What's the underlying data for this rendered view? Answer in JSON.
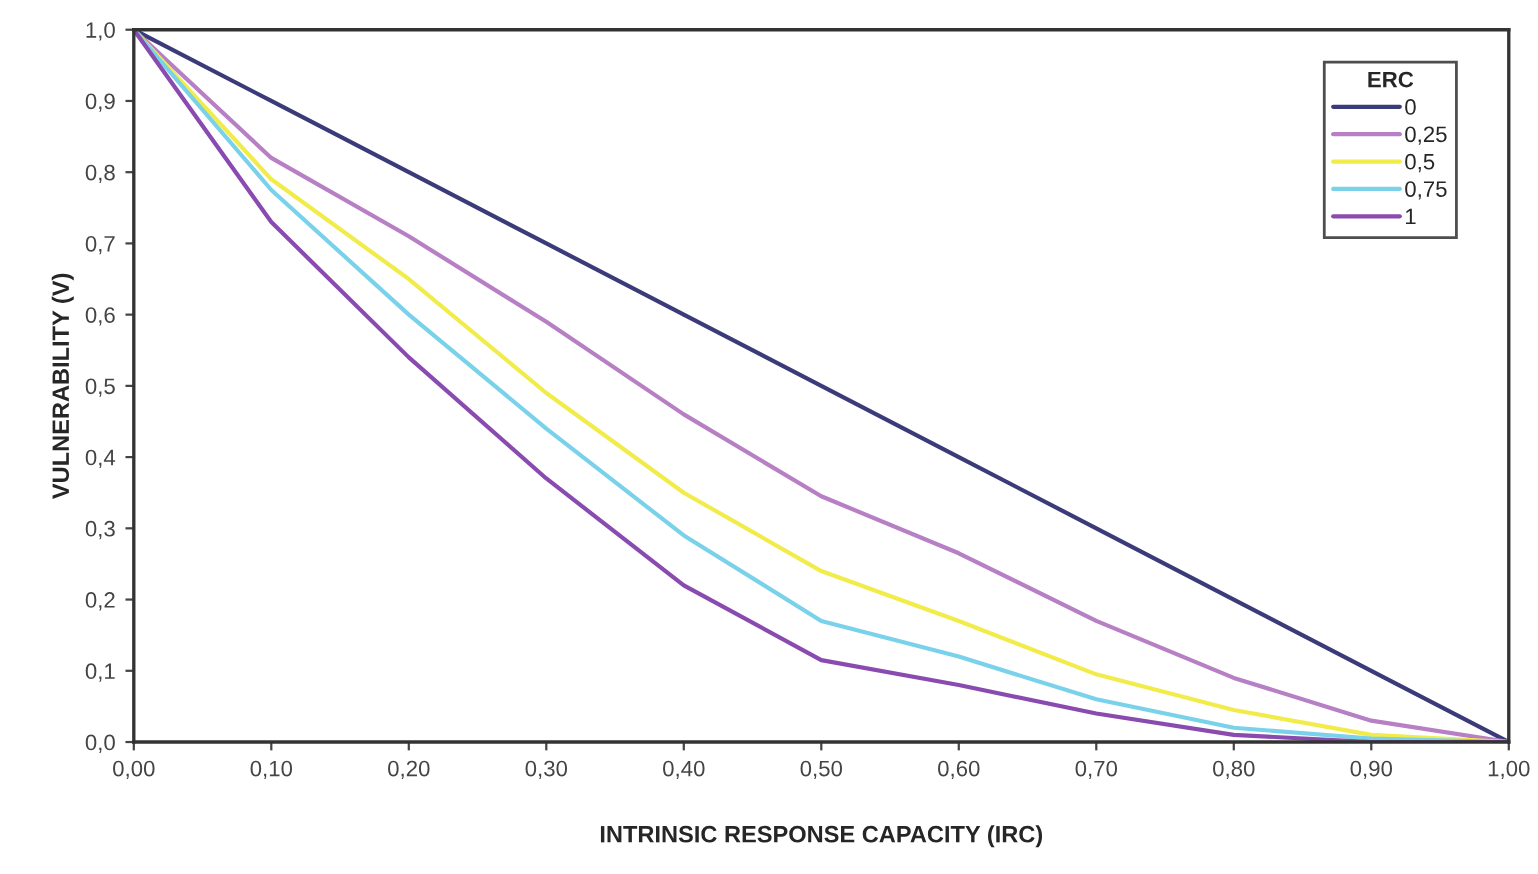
{
  "chart_data": {
    "type": "line",
    "xlabel": "INTRINSIC RESPONSE CAPACITY (IRC)",
    "ylabel": "VULNERABILITY (V)",
    "legend_title": "ERC",
    "legend": "top right",
    "grid": false,
    "marker": "none",
    "line_style": "solid",
    "x": [
      0,
      0.1,
      0.2,
      0.3,
      0.4,
      0.5,
      0.6,
      0.7,
      0.8,
      0.9,
      1.0
    ],
    "xlim": [
      0,
      1
    ],
    "ylim": [
      0,
      1
    ],
    "xticks": [
      {
        "value": 0,
        "label": "0,00"
      },
      {
        "value": 0.1,
        "label": "0,10"
      },
      {
        "value": 0.2,
        "label": "0,20"
      },
      {
        "value": 0.3,
        "label": "0,30"
      },
      {
        "value": 0.4,
        "label": "0,40"
      },
      {
        "value": 0.5,
        "label": "0,50"
      },
      {
        "value": 0.6,
        "label": "0,60"
      },
      {
        "value": 0.7,
        "label": "0,70"
      },
      {
        "value": 0.8,
        "label": "0,80"
      },
      {
        "value": 0.9,
        "label": "0,90"
      },
      {
        "value": 1.0,
        "label": "1,00"
      }
    ],
    "yticks": [
      {
        "value": 0,
        "label": "0,0"
      },
      {
        "value": 0.1,
        "label": "0,1"
      },
      {
        "value": 0.2,
        "label": "0,2"
      },
      {
        "value": 0.3,
        "label": "0,3"
      },
      {
        "value": 0.4,
        "label": "0,4"
      },
      {
        "value": 0.5,
        "label": "0,5"
      },
      {
        "value": 0.6,
        "label": "0,6"
      },
      {
        "value": 0.7,
        "label": "0,7"
      },
      {
        "value": 0.8,
        "label": "0,8"
      },
      {
        "value": 0.9,
        "label": "0,9"
      },
      {
        "value": 1.0,
        "label": "1,0"
      }
    ],
    "series": [
      {
        "name": "0",
        "color": "#3b3b7a",
        "values": [
          1.0,
          0.9,
          0.8,
          0.7,
          0.6,
          0.5,
          0.4,
          0.3,
          0.2,
          0.1,
          0.0
        ]
      },
      {
        "name": "0,25",
        "color": "#b77fc4",
        "values": [
          1.0,
          0.82,
          0.71,
          0.59,
          0.46,
          0.345,
          0.265,
          0.17,
          0.09,
          0.03,
          0.0
        ]
      },
      {
        "name": "0,5",
        "color": "#f2ec4a",
        "values": [
          1.0,
          0.79,
          0.65,
          0.49,
          0.35,
          0.24,
          0.17,
          0.095,
          0.045,
          0.01,
          0.0
        ]
      },
      {
        "name": "0,75",
        "color": "#79d2ea",
        "values": [
          1.0,
          0.775,
          0.6,
          0.44,
          0.29,
          0.17,
          0.12,
          0.06,
          0.02,
          0.005,
          0.0
        ]
      },
      {
        "name": "1",
        "color": "#8a4bb0",
        "values": [
          1.0,
          0.73,
          0.54,
          0.37,
          0.22,
          0.115,
          0.08,
          0.04,
          0.01,
          0.0,
          0.0
        ]
      }
    ]
  }
}
